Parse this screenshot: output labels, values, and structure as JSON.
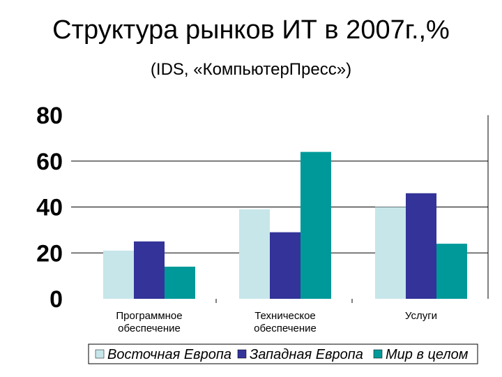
{
  "title": "Структура рынков ИТ в 2007г.,%",
  "subtitle": "(IDS, «КомпьютерПресс»)",
  "chart_data": {
    "type": "bar",
    "categories": [
      [
        "Программное",
        "обеспечение"
      ],
      [
        "Техническое",
        "обеспечение"
      ],
      [
        "Услуги"
      ]
    ],
    "series": [
      {
        "name": "Восточная Европа",
        "color": "#c6e6ea",
        "values": [
          21,
          39,
          40
        ]
      },
      {
        "name": "Западная Европа",
        "color": "#333399",
        "values": [
          25,
          29,
          46
        ]
      },
      {
        "name": "Мир в целом",
        "color": "#009999",
        "values": [
          14,
          64,
          24
        ]
      }
    ],
    "yticks": [
      "80",
      "60",
      "40",
      "20",
      "0"
    ],
    "ylim": [
      0,
      80
    ],
    "grid": true,
    "legend_position": "bottom"
  }
}
